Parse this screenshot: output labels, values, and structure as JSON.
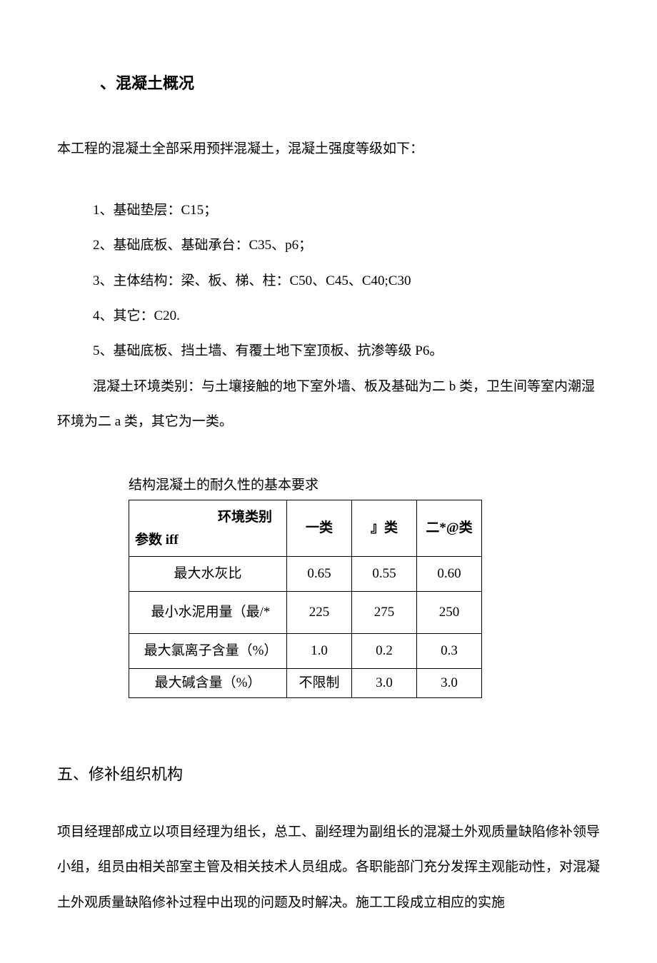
{
  "heading1": "、混凝土概况",
  "intro": "本工程的混凝土全部采用预拌混凝土，混凝土强度等级如下：",
  "items": [
    "1、基础垫层：C15；",
    "2、基础底板、基础承台：C35、p6；",
    "3、主体结构：梁、板、梯、柱：C50、C45、C40;C30",
    "4、其它：C20.",
    "5、基础底板、挡土墙、有覆土地下室顶板、抗渗等级 P6。"
  ],
  "env_para": "混凝土环境类别：与土壤接触的地下室外墙、板及基础为二 b 类，卫生间等室内潮湿环境为二 a 类，其它为一类。",
  "table": {
    "caption": "结构混凝土的耐久性的基本要求",
    "header_top": "环境类别",
    "header_bottom": "参数 iff",
    "col_headers": [
      "一类",
      "』类",
      "二*@类"
    ],
    "rows": [
      {
        "label": "最大水灰比",
        "align": "center",
        "height": "row-std",
        "vals": [
          "0.65",
          "0.55",
          "0.60"
        ]
      },
      {
        "label": "最小水泥用量（最/*",
        "align": "left",
        "height": "row-tall",
        "vals": [
          "225",
          "275",
          "250"
        ]
      },
      {
        "label": "最大氯离子含量（%）",
        "align": "left",
        "height": "row-std",
        "vals": [
          "1.0",
          "0.2",
          "0.3"
        ]
      },
      {
        "label": "最大碱含量（%）",
        "align": "center",
        "height": "row-short",
        "vals": [
          "不限制",
          "3.0",
          "3.0"
        ]
      }
    ],
    "border_color": "#000000",
    "font_size_pt": 14,
    "cell_bg": "#ffffff"
  },
  "heading2": "五、修补组织机构",
  "body2": "项目经理部成立以项目经理为组长，总工、副经理为副组长的混凝土外观质量缺陷修补领导小组，组员由相关部室主管及相关技术人员组成。各职能部门充分发挥主观能动性，对混凝土外观质量缺陷修补过程中出现的问题及时解决。施工工段成立相应的实施"
}
